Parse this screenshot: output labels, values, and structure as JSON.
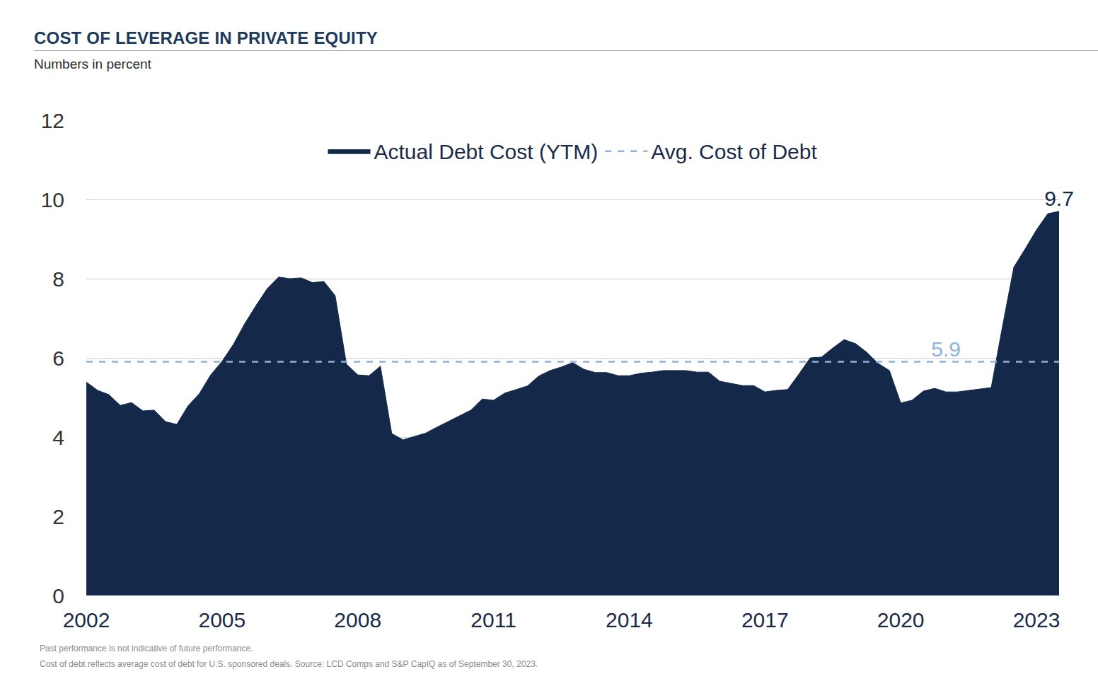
{
  "chart_data": {
    "type": "area",
    "title": "COST OF LEVERAGE IN PRIVATE EQUITY",
    "subtitle": "Numbers in percent",
    "notes": [
      "Past performance is not indicative of future performance.",
      "Cost of debt reflects average cost of debt for U.S. sponsored deals. Source: LCD Comps and S&P CapIQ as of September 30, 2023."
    ],
    "categories": [
      "2002",
      null,
      null,
      null,
      null,
      null,
      null,
      null,
      null,
      null,
      null,
      null,
      "2005",
      null,
      null,
      null,
      null,
      null,
      null,
      null,
      null,
      null,
      null,
      null,
      "2008",
      null,
      null,
      null,
      null,
      null,
      null,
      null,
      null,
      null,
      null,
      null,
      "2011",
      null,
      null,
      null,
      null,
      null,
      null,
      null,
      null,
      null,
      null,
      null,
      "2014",
      null,
      null,
      null,
      null,
      null,
      null,
      null,
      null,
      null,
      null,
      null,
      "2017",
      null,
      null,
      null,
      null,
      null,
      null,
      null,
      null,
      null,
      null,
      null,
      "2020",
      null,
      null,
      null,
      null,
      null,
      null,
      null,
      null,
      null,
      null,
      null,
      "2023",
      null,
      null
    ],
    "series": [
      {
        "name": "Actual Debt Cost (YTM)",
        "type": "area",
        "color": "#14294a",
        "line_style": "solid",
        "values": [
          5.39,
          5.18,
          5.07,
          4.8,
          4.87,
          4.66,
          4.68,
          4.39,
          4.32,
          4.79,
          5.1,
          5.57,
          5.91,
          6.34,
          6.86,
          7.32,
          7.75,
          8.04,
          8.0,
          8.02,
          7.9,
          7.93,
          7.57,
          5.84,
          5.57,
          5.55,
          5.79,
          4.09,
          3.93,
          4.02,
          4.1,
          4.25,
          4.39,
          4.54,
          4.68,
          4.96,
          4.93,
          5.11,
          5.2,
          5.29,
          5.54,
          5.68,
          5.77,
          5.88,
          5.71,
          5.63,
          5.63,
          5.55,
          5.55,
          5.61,
          5.64,
          5.68,
          5.68,
          5.68,
          5.64,
          5.64,
          5.41,
          5.36,
          5.3,
          5.3,
          5.14,
          5.18,
          5.2,
          5.59,
          6.0,
          6.02,
          6.25,
          6.46,
          6.36,
          6.14,
          5.86,
          5.68,
          4.86,
          4.93,
          5.16,
          5.23,
          5.14,
          5.14,
          5.18,
          5.21,
          5.25,
          6.8,
          8.29,
          8.75,
          9.23,
          9.64,
          9.7
        ],
        "value_labels": [
          null,
          null,
          null,
          null,
          null,
          null,
          null,
          null,
          null,
          null,
          null,
          null,
          null,
          null,
          null,
          null,
          null,
          null,
          null,
          null,
          null,
          null,
          null,
          null,
          null,
          null,
          null,
          null,
          null,
          null,
          null,
          null,
          null,
          null,
          null,
          null,
          null,
          null,
          null,
          null,
          null,
          null,
          null,
          null,
          null,
          null,
          null,
          null,
          null,
          null,
          null,
          null,
          null,
          null,
          null,
          null,
          null,
          null,
          null,
          null,
          null,
          null,
          null,
          null,
          null,
          null,
          null,
          null,
          null,
          null,
          null,
          null,
          null,
          null,
          null,
          null,
          null,
          null,
          null,
          null,
          null,
          null,
          null,
          null,
          null,
          null,
          "9.7"
        ]
      },
      {
        "name": "Avg. Cost of Debt",
        "type": "line",
        "color": "#8fb3d9",
        "line_style": "dashed",
        "values": [
          5.9,
          5.9,
          5.9,
          5.9,
          5.9,
          5.9,
          5.9,
          5.9,
          5.9,
          5.9,
          5.9,
          5.9,
          5.9,
          5.9,
          5.9,
          5.9,
          5.9,
          5.9,
          5.9,
          5.9,
          5.9,
          5.9,
          5.9,
          5.9,
          5.9,
          5.9,
          5.9,
          5.9,
          5.9,
          5.9,
          5.9,
          5.9,
          5.9,
          5.9,
          5.9,
          5.9,
          5.9,
          5.9,
          5.9,
          5.9,
          5.9,
          5.9,
          5.9,
          5.9,
          5.9,
          5.9,
          5.9,
          5.9,
          5.9,
          5.9,
          5.9,
          5.9,
          5.9,
          5.9,
          5.9,
          5.9,
          5.9,
          5.9,
          5.9,
          5.9,
          5.9,
          5.9,
          5.9,
          5.9,
          5.9,
          5.9,
          5.9,
          5.9,
          5.9,
          5.9,
          5.9,
          5.9,
          5.9,
          5.9,
          5.9,
          5.9,
          5.9,
          5.9,
          5.9,
          5.9,
          5.9,
          5.9,
          5.9,
          5.9,
          5.9,
          5.9,
          5.9
        ],
        "value_labels": [
          null,
          null,
          null,
          null,
          null,
          null,
          null,
          null,
          null,
          null,
          null,
          null,
          null,
          null,
          null,
          null,
          null,
          null,
          null,
          null,
          null,
          null,
          null,
          null,
          null,
          null,
          null,
          null,
          null,
          null,
          null,
          null,
          null,
          null,
          null,
          null,
          null,
          null,
          null,
          null,
          null,
          null,
          null,
          null,
          null,
          null,
          null,
          null,
          null,
          null,
          null,
          null,
          null,
          null,
          null,
          null,
          null,
          null,
          null,
          null,
          null,
          null,
          null,
          null,
          null,
          null,
          null,
          null,
          null,
          null,
          null,
          null,
          null,
          null,
          null,
          null,
          "5.9",
          null,
          null,
          null,
          null,
          null,
          null,
          null,
          null,
          null,
          null
        ]
      }
    ],
    "ylim": [
      0,
      12
    ],
    "yticks": [
      0,
      2,
      4,
      6,
      8,
      10,
      12
    ],
    "grid": true,
    "legend": "top"
  }
}
